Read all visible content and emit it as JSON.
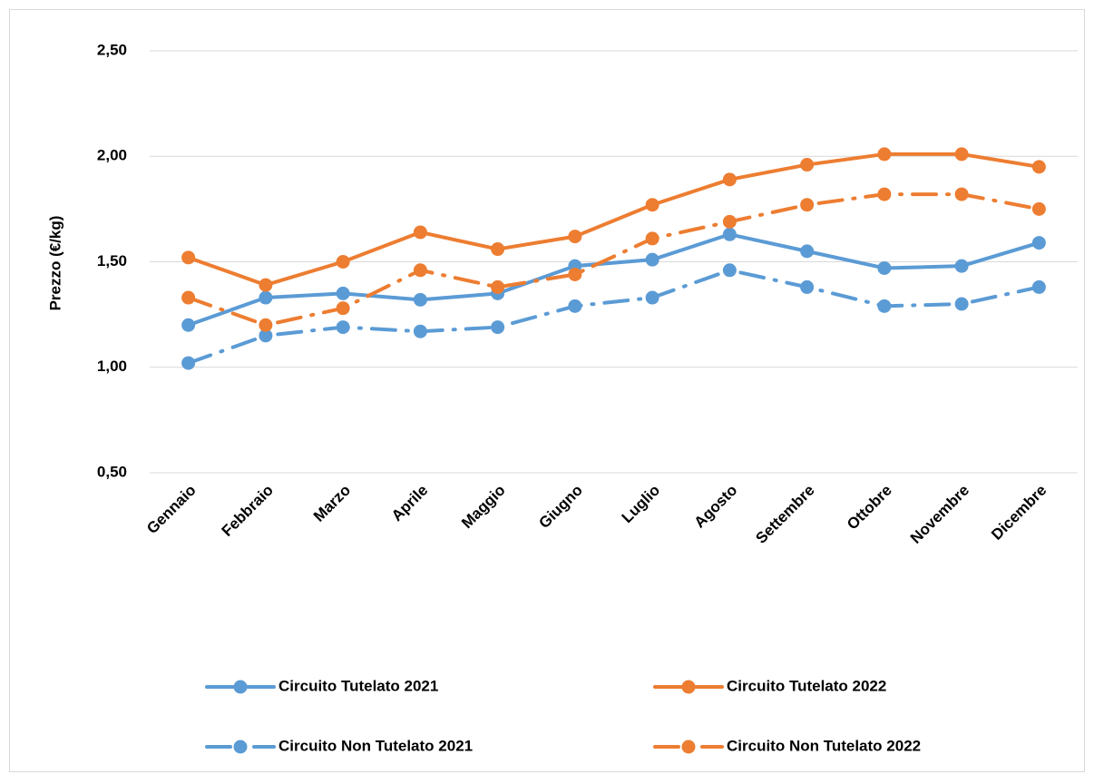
{
  "chart_data": {
    "type": "line",
    "y_label": "Prezzo (€/kg)",
    "categories": [
      "Gennaio",
      "Febbraio",
      "Marzo",
      "Aprile",
      "Maggio",
      "Giugno",
      "Luglio",
      "Agosto",
      "Settembre",
      "Ottobre",
      "Novembre",
      "Dicembre"
    ],
    "series": [
      {
        "name": "Circuito Tutelato 2021",
        "color": "#5b9bd5",
        "line_style": "solid",
        "values": [
          1.2,
          1.33,
          1.35,
          1.32,
          1.35,
          1.48,
          1.51,
          1.63,
          1.55,
          1.47,
          1.48,
          1.59
        ]
      },
      {
        "name": "Circuito Tutelato 2022",
        "color": "#ed7d31",
        "line_style": "solid",
        "values": [
          1.52,
          1.39,
          1.5,
          1.64,
          1.56,
          1.62,
          1.77,
          1.89,
          1.96,
          2.01,
          2.01,
          1.95
        ]
      },
      {
        "name": "Circuito Non Tutelato 2021",
        "color": "#5b9bd5",
        "line_style": "dashdot",
        "values": [
          1.02,
          1.15,
          1.19,
          1.17,
          1.19,
          1.29,
          1.33,
          1.46,
          1.38,
          1.29,
          1.3,
          1.38
        ]
      },
      {
        "name": "Circuito Non Tutelato 2022",
        "color": "#ed7d31",
        "line_style": "dashdot",
        "values": [
          1.33,
          1.2,
          1.28,
          1.46,
          1.38,
          1.44,
          1.61,
          1.69,
          1.77,
          1.82,
          1.82,
          1.75
        ]
      }
    ],
    "ylim": [
      0.5,
      2.5
    ],
    "yticks": [
      {
        "value": 0.5,
        "label": "0,50"
      },
      {
        "value": 1.0,
        "label": "1,00"
      },
      {
        "value": 1.5,
        "label": "1,50"
      },
      {
        "value": 2.0,
        "label": "2,00"
      },
      {
        "value": 2.5,
        "label": "2,50"
      }
    ],
    "grid": true,
    "legend": "bottom"
  }
}
